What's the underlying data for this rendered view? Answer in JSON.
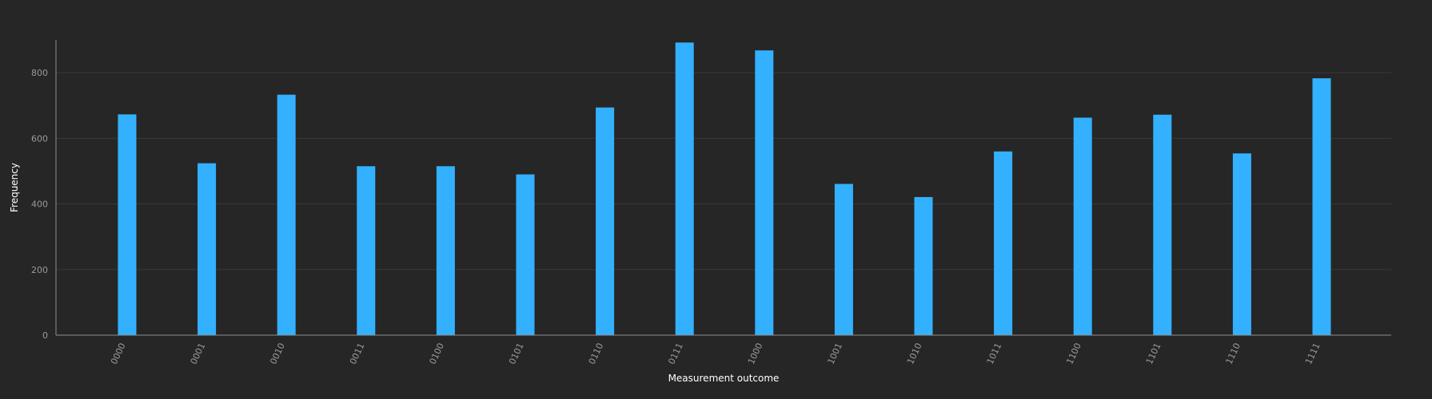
{
  "chart_data": {
    "type": "bar",
    "categories": [
      "0000",
      "0001",
      "0010",
      "0011",
      "0100",
      "0101",
      "0110",
      "0111",
      "1000",
      "1001",
      "1010",
      "1011",
      "1100",
      "1101",
      "1110",
      "1111"
    ],
    "series": [
      {
        "values": [
          673,
          524,
          733,
          515,
          515,
          490,
          694,
          892,
          868,
          461,
          421,
          560,
          663,
          672,
          554,
          783
        ]
      }
    ],
    "xlabel": "Measurement outcome",
    "ylabel": "Frequency",
    "ylim": [
      0,
      900
    ],
    "yticks": [
      0,
      200,
      400,
      600,
      800
    ],
    "grid": true,
    "colors": {
      "background": "#262626",
      "bar": "#33b1ff",
      "grid": "#393939",
      "axis": "#8d8d8d"
    }
  }
}
